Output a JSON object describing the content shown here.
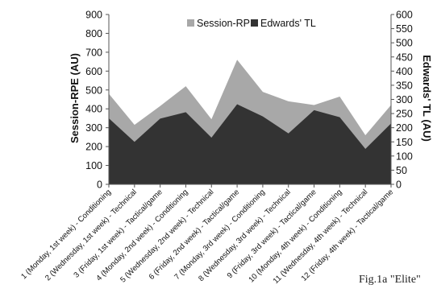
{
  "chart_data": {
    "type": "area",
    "categories": [
      "1 (Monday, 1st week) - Conditioning",
      "2 (Wednesday, 1st week) - Technical",
      "3 (Friday, 1st week) - Tactical/game",
      "4 (Monday, 2nd week) - Conditioning",
      "5 (Wednesday, 2nd week) - Technical",
      "6 (Friday, 2nd week) - Tactical/game",
      "7 (Monday, 3rd week) - Conditioning",
      "8 (Wednesday, 3rd week) - Technical",
      "9 (Friday, 3rd week) - Tactical/game",
      "10 (Monday, 4th week) - Conditioning",
      "11 (Wednesday, 4th week) - Technical",
      "12 (Friday, 4th week) - Tactical/game"
    ],
    "series": [
      {
        "name": "Session-RPE",
        "axis": "left",
        "color": "#a8a8a8",
        "values": [
          480,
          315,
          415,
          520,
          345,
          660,
          490,
          440,
          420,
          465,
          260,
          420
        ]
      },
      {
        "name": "Edwards' TL",
        "axis": "right",
        "color": "#333333",
        "values": [
          233,
          150,
          232,
          255,
          165,
          283,
          240,
          180,
          262,
          237,
          125,
          215
        ]
      }
    ],
    "ylabel": "Session-RPE (AU)",
    "ylabel_right": "Edwards' TL (AU)",
    "ylim": [
      0,
      900
    ],
    "ylim_right": [
      0,
      600
    ],
    "yticks": [
      0,
      100,
      200,
      300,
      400,
      500,
      600,
      700,
      800,
      900
    ],
    "yticks_right": [
      0,
      50,
      100,
      150,
      200,
      250,
      300,
      350,
      400,
      450,
      500,
      550,
      600
    ],
    "legend_placement": "top-center",
    "grid": false
  },
  "caption": "Fig.1a \"Elite\""
}
